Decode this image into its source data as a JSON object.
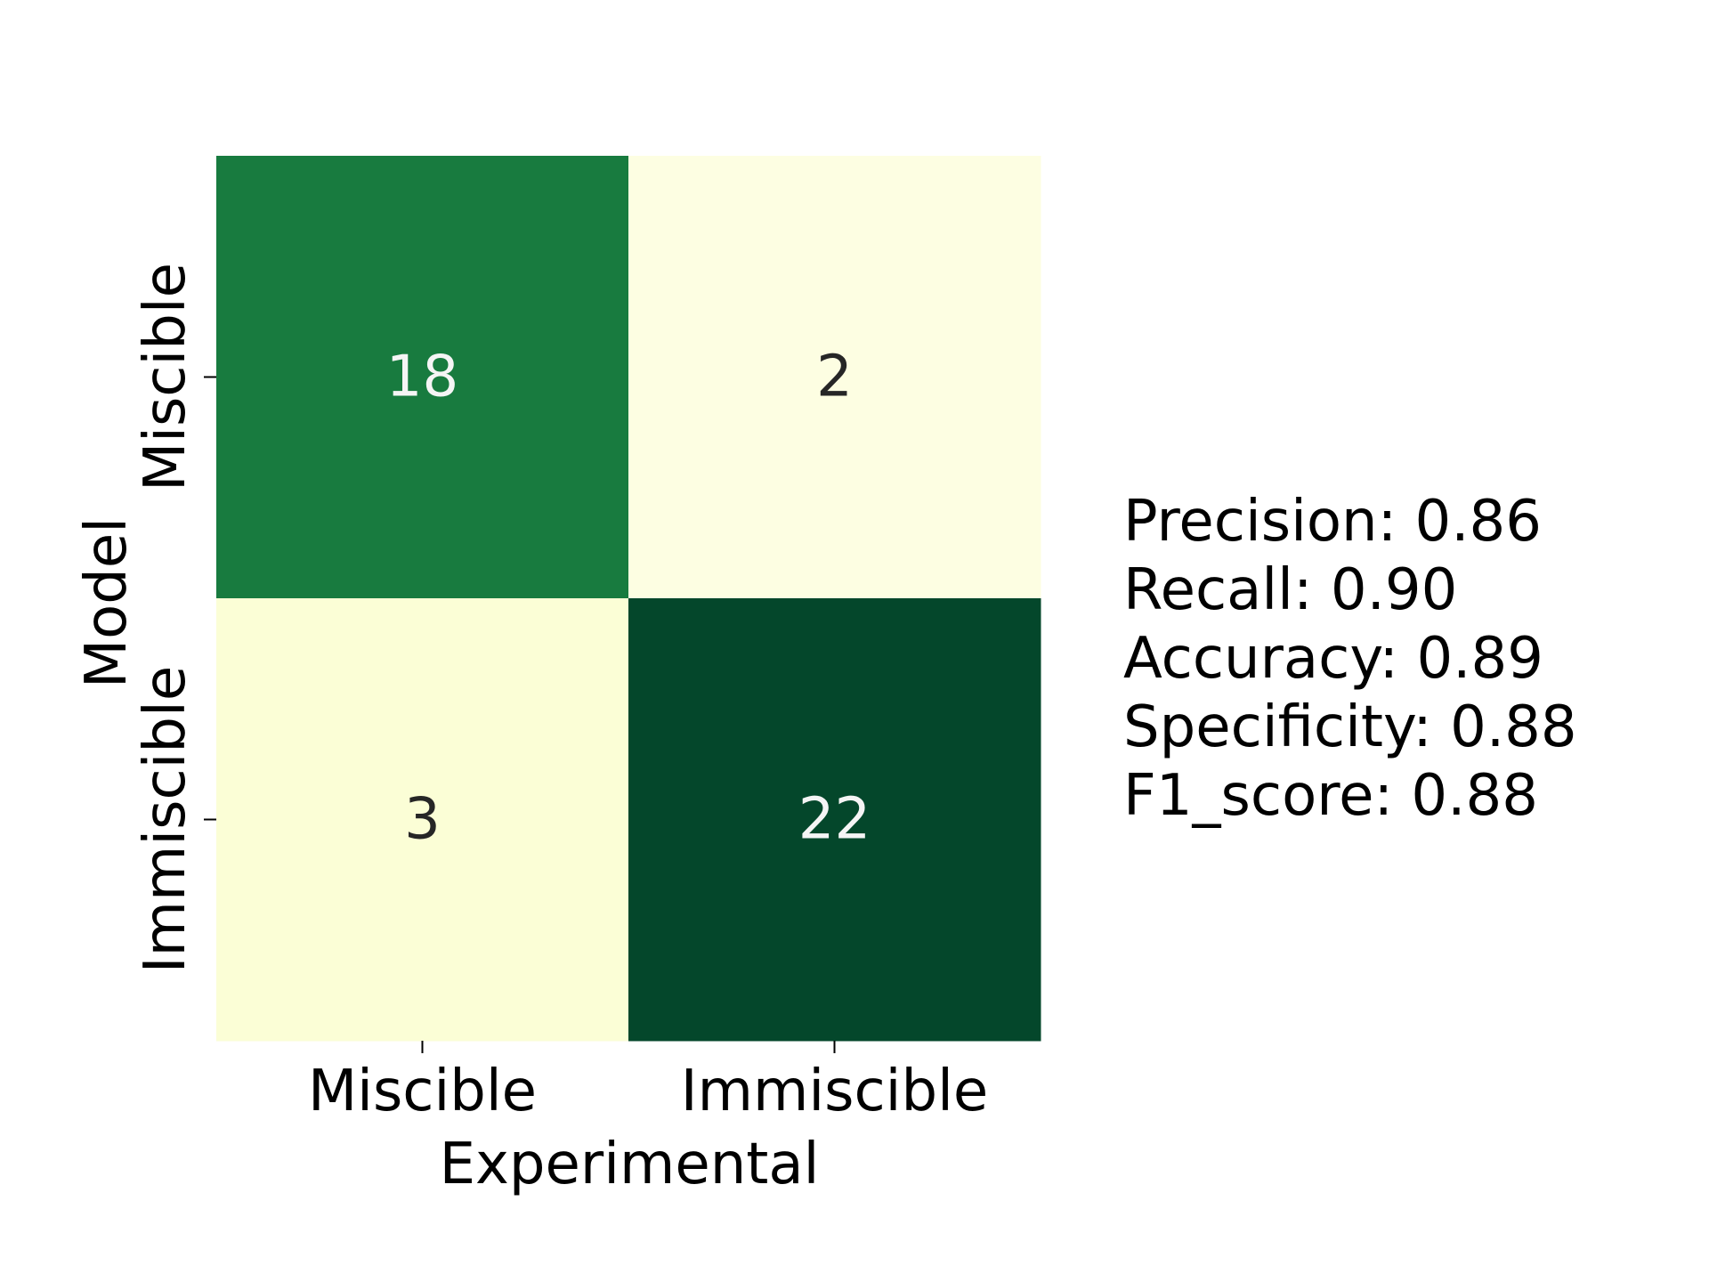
{
  "chart_data": {
    "type": "heatmap",
    "xlabel": "Experimental",
    "ylabel": "Model",
    "x_categories": [
      "Miscible",
      "Immiscible"
    ],
    "y_categories": [
      "Miscible",
      "Immiscible"
    ],
    "values": [
      [
        18,
        2
      ],
      [
        3,
        22
      ]
    ],
    "colormap": "YlGn",
    "colors": {
      "cells": [
        [
          "#187b3f",
          "#fdfee2"
        ],
        [
          "#fbfed6",
          "#04472b"
        ]
      ],
      "annotation_light": "#f5f5f5",
      "annotation_dark": "#262626"
    },
    "colorbar": false,
    "grid": false
  },
  "metrics": [
    {
      "label": "Precision",
      "value": "0.86"
    },
    {
      "label": "Recall",
      "value": "0.90"
    },
    {
      "label": "Accuracy",
      "value": "0.89"
    },
    {
      "label": "Specificity",
      "value": "0.88"
    },
    {
      "label": "F1_score",
      "value": "0.88"
    }
  ]
}
